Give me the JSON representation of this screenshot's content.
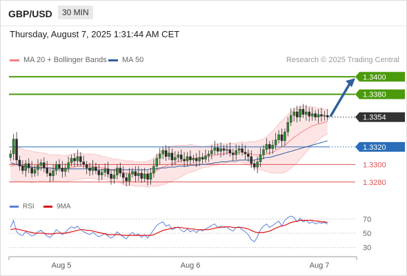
{
  "header": {
    "pair": "GBP/USD",
    "timeframe": "30 MIN",
    "datetime": "Thursday, August 7, 2025 1:31:44 AM CET"
  },
  "legend": {
    "bollinger": {
      "label": "MA 20 + Bollinger Bands",
      "color": "#f08080"
    },
    "ma50": {
      "label": "MA 50",
      "color": "#2f5f9e"
    },
    "credit": "Research © 2025 Trading Central"
  },
  "levels": [
    {
      "value": "1.3400",
      "kind": "resistance",
      "color": "#4a9a0a"
    },
    {
      "value": "1.3380",
      "kind": "resistance",
      "color": "#4a9a0a"
    },
    {
      "value": "1.3354",
      "kind": "current",
      "color": "#333333"
    },
    {
      "value": "1.3320",
      "kind": "pivot",
      "color": "#2a6db8"
    },
    {
      "value": "1.3300",
      "kind": "support",
      "color": "#e05050"
    },
    {
      "value": "1.3280",
      "kind": "support",
      "color": "#e05050"
    }
  ],
  "rsi_panel": {
    "rsi_label": "RSI",
    "rsi_color": "#5b7fd6",
    "ma_label": "9MA",
    "ma_color": "#e01010",
    "ticks": [
      "70",
      "50",
      "30"
    ]
  },
  "x_axis": {
    "labels": [
      "Aug 5",
      "Aug 6",
      "Aug 7"
    ]
  },
  "chart_data": {
    "type": "candlestick",
    "y_range": [
      1.3268,
      1.3412
    ],
    "price": [
      1.3312,
      1.3329,
      1.3305,
      1.3298,
      1.3293,
      1.3301,
      1.3296,
      1.329,
      1.3294,
      1.3299,
      1.3302,
      1.3296,
      1.329,
      1.3287,
      1.3293,
      1.33,
      1.3296,
      1.3292,
      1.3296,
      1.3302,
      1.3307,
      1.3304,
      1.3309,
      1.3303,
      1.33,
      1.3296,
      1.3293,
      1.3297,
      1.3293,
      1.3288,
      1.3291,
      1.3295,
      1.3289,
      1.3284,
      1.3288,
      1.3296,
      1.329,
      1.3285,
      1.3281,
      1.3289,
      1.3292,
      1.3287,
      1.329,
      1.3284,
      1.3289,
      1.3283,
      1.329,
      1.3298,
      1.3307,
      1.3312,
      1.3316,
      1.3309,
      1.3313,
      1.3305,
      1.3308,
      1.3311,
      1.3306,
      1.3304,
      1.3309,
      1.3305,
      1.3307,
      1.3304,
      1.3308,
      1.3306,
      1.331,
      1.3312,
      1.3316,
      1.3319,
      1.3315,
      1.3318,
      1.3316,
      1.3317,
      1.3313,
      1.3311,
      1.3316,
      1.3318,
      1.3314,
      1.3312,
      1.3309,
      1.3301,
      1.3297,
      1.3303,
      1.3311,
      1.3317,
      1.3323,
      1.3318,
      1.3322,
      1.3328,
      1.3334,
      1.3327,
      1.3337,
      1.3348,
      1.3356,
      1.336,
      1.3354,
      1.3363,
      1.3357,
      1.336,
      1.3355,
      1.3358,
      1.3354,
      1.3357,
      1.3355,
      1.3356,
      1.3354
    ],
    "ma20": [
      1.3298,
      1.3299,
      1.33,
      1.33,
      1.3299,
      1.3298,
      1.3298,
      1.3297,
      1.3297,
      1.3297,
      1.3297,
      1.3297,
      1.3296,
      1.3296,
      1.3296,
      1.3296,
      1.3296,
      1.3295,
      1.3295,
      1.3296,
      1.3297,
      1.3297,
      1.3298,
      1.3298,
      1.3298,
      1.3298,
      1.3298,
      1.3298,
      1.3297,
      1.3297,
      1.3296,
      1.3296,
      1.3295,
      1.3294,
      1.3293,
      1.3293,
      1.3292,
      1.3291,
      1.329,
      1.329,
      1.329,
      1.3289,
      1.3289,
      1.3289,
      1.3289,
      1.3289,
      1.329,
      1.3291,
      1.3293,
      1.3295,
      1.3297,
      1.3298,
      1.33,
      1.3301,
      1.3302,
      1.3303,
      1.3304,
      1.3305,
      1.3306,
      1.3307,
      1.3307,
      1.3307,
      1.3308,
      1.3308,
      1.3309,
      1.3309,
      1.331,
      1.3311,
      1.3311,
      1.3312,
      1.3312,
      1.3313,
      1.3313,
      1.3313,
      1.3313,
      1.3314,
      1.3314,
      1.3313,
      1.3313,
      1.3312,
      1.3311,
      1.3311,
      1.3311,
      1.3311,
      1.3312,
      1.3313,
      1.3314,
      1.3316,
      1.3318,
      1.332,
      1.3322,
      1.3325,
      1.3328,
      1.3331,
      1.3333,
      1.3336,
      1.3338,
      1.334,
      1.3342,
      1.3344,
      1.3345,
      1.3346,
      1.3347,
      1.3348,
      1.3349
    ],
    "ma50": [
      1.3302,
      1.3301,
      1.33,
      1.3299,
      1.3298,
      1.3297,
      1.3297,
      1.3297,
      1.3296,
      1.3296,
      1.3296,
      1.3296,
      1.3296,
      1.3296,
      1.3295,
      1.3295,
      1.3295,
      1.3295,
      1.3295,
      1.3295,
      1.3295,
      1.3295,
      1.3295,
      1.3295,
      1.3295,
      1.3295,
      1.3295,
      1.3295,
      1.3294,
      1.3294,
      1.3294,
      1.3294,
      1.3294,
      1.3294,
      1.3294,
      1.3294,
      1.3294,
      1.3294,
      1.3294,
      1.3294,
      1.3294,
      1.3294,
      1.3294,
      1.3294,
      1.3294,
      1.3294,
      1.3295,
      1.3295,
      1.3295,
      1.3296,
      1.3296,
      1.3296,
      1.3297,
      1.3297,
      1.3297,
      1.3298,
      1.3298,
      1.3298,
      1.3298,
      1.3299,
      1.3299,
      1.3299,
      1.33,
      1.33,
      1.33,
      1.3301,
      1.3301,
      1.3302,
      1.3302,
      1.3303,
      1.3303,
      1.3303,
      1.3304,
      1.3304,
      1.3304,
      1.3305,
      1.3305,
      1.3305,
      1.3305,
      1.3305,
      1.3305,
      1.3306,
      1.3306,
      1.3307,
      1.3308,
      1.3308,
      1.3309,
      1.331,
      1.3311,
      1.3312,
      1.3313,
      1.3314,
      1.3315,
      1.3316,
      1.3317,
      1.3318,
      1.3319,
      1.332,
      1.3321,
      1.3322,
      1.3323,
      1.3324,
      1.3325,
      1.3326,
      1.3327
    ],
    "band_width": [
      0.0018,
      0.0019,
      0.0019,
      0.0019,
      0.0019,
      0.0018,
      0.0018,
      0.0018,
      0.0017,
      0.0017,
      0.0016,
      0.0016,
      0.0016,
      0.0015,
      0.0015,
      0.0015,
      0.0015,
      0.0015,
      0.0015,
      0.0015,
      0.0015,
      0.0015,
      0.0015,
      0.0015,
      0.0014,
      0.0014,
      0.0014,
      0.0014,
      0.0014,
      0.0014,
      0.0013,
      0.0013,
      0.0013,
      0.0013,
      0.0013,
      0.0013,
      0.0013,
      0.0014,
      0.0014,
      0.0014,
      0.0014,
      0.0014,
      0.0014,
      0.0014,
      0.0014,
      0.0015,
      0.0015,
      0.0016,
      0.0018,
      0.0019,
      0.002,
      0.002,
      0.002,
      0.002,
      0.0019,
      0.0019,
      0.0018,
      0.0017,
      0.0016,
      0.0016,
      0.0015,
      0.0014,
      0.0013,
      0.0012,
      0.0012,
      0.0012,
      0.0012,
      0.0012,
      0.0012,
      0.0012,
      0.0011,
      0.0011,
      0.0011,
      0.0011,
      0.0011,
      0.0011,
      0.0012,
      0.0012,
      0.0013,
      0.0014,
      0.0015,
      0.0016,
      0.0017,
      0.0018,
      0.002,
      0.0022,
      0.0024,
      0.0026,
      0.0028,
      0.003,
      0.0031,
      0.0032,
      0.0032,
      0.0032,
      0.0031,
      0.003,
      0.0028,
      0.0026,
      0.0024,
      0.0022,
      0.002,
      0.0018,
      0.0016,
      0.0015,
      0.0014
    ],
    "rsi_range": [
      20,
      80
    ],
    "rsi": [
      58,
      68,
      52,
      48,
      47,
      52,
      49,
      46,
      48,
      52,
      54,
      50,
      46,
      44,
      49,
      55,
      52,
      48,
      51,
      56,
      59,
      57,
      60,
      55,
      52,
      50,
      48,
      51,
      48,
      45,
      47,
      50,
      46,
      43,
      46,
      52,
      48,
      45,
      42,
      48,
      51,
      47,
      49,
      44,
      48,
      43,
      49,
      55,
      61,
      64,
      66,
      60,
      62,
      55,
      57,
      59,
      54,
      52,
      56,
      52,
      54,
      51,
      55,
      53,
      56,
      58,
      61,
      63,
      58,
      60,
      58,
      59,
      55,
      53,
      58,
      59,
      55,
      52,
      48,
      41,
      38,
      45,
      55,
      60,
      63,
      58,
      61,
      64,
      67,
      60,
      68,
      72,
      74,
      72,
      66,
      71,
      66,
      68,
      64,
      66,
      63,
      65,
      64,
      65,
      63
    ],
    "rsi_ma": [
      55,
      56,
      56,
      55,
      54,
      53,
      52,
      51,
      50,
      50,
      50,
      50,
      49,
      49,
      49,
      50,
      50,
      50,
      50,
      51,
      52,
      53,
      54,
      55,
      55,
      54,
      54,
      53,
      52,
      51,
      50,
      49,
      48,
      48,
      48,
      48,
      48,
      47,
      47,
      47,
      47,
      47,
      47,
      47,
      47,
      47,
      47,
      48,
      50,
      52,
      54,
      55,
      56,
      57,
      58,
      58,
      58,
      57,
      57,
      56,
      56,
      55,
      55,
      55,
      55,
      55,
      56,
      57,
      58,
      58,
      59,
      59,
      59,
      58,
      58,
      58,
      58,
      57,
      56,
      54,
      52,
      51,
      51,
      51,
      52,
      53,
      55,
      57,
      59,
      60,
      61,
      63,
      65,
      66,
      67,
      68,
      68,
      68,
      68,
      68,
      67,
      67,
      66,
      66,
      65
    ]
  }
}
